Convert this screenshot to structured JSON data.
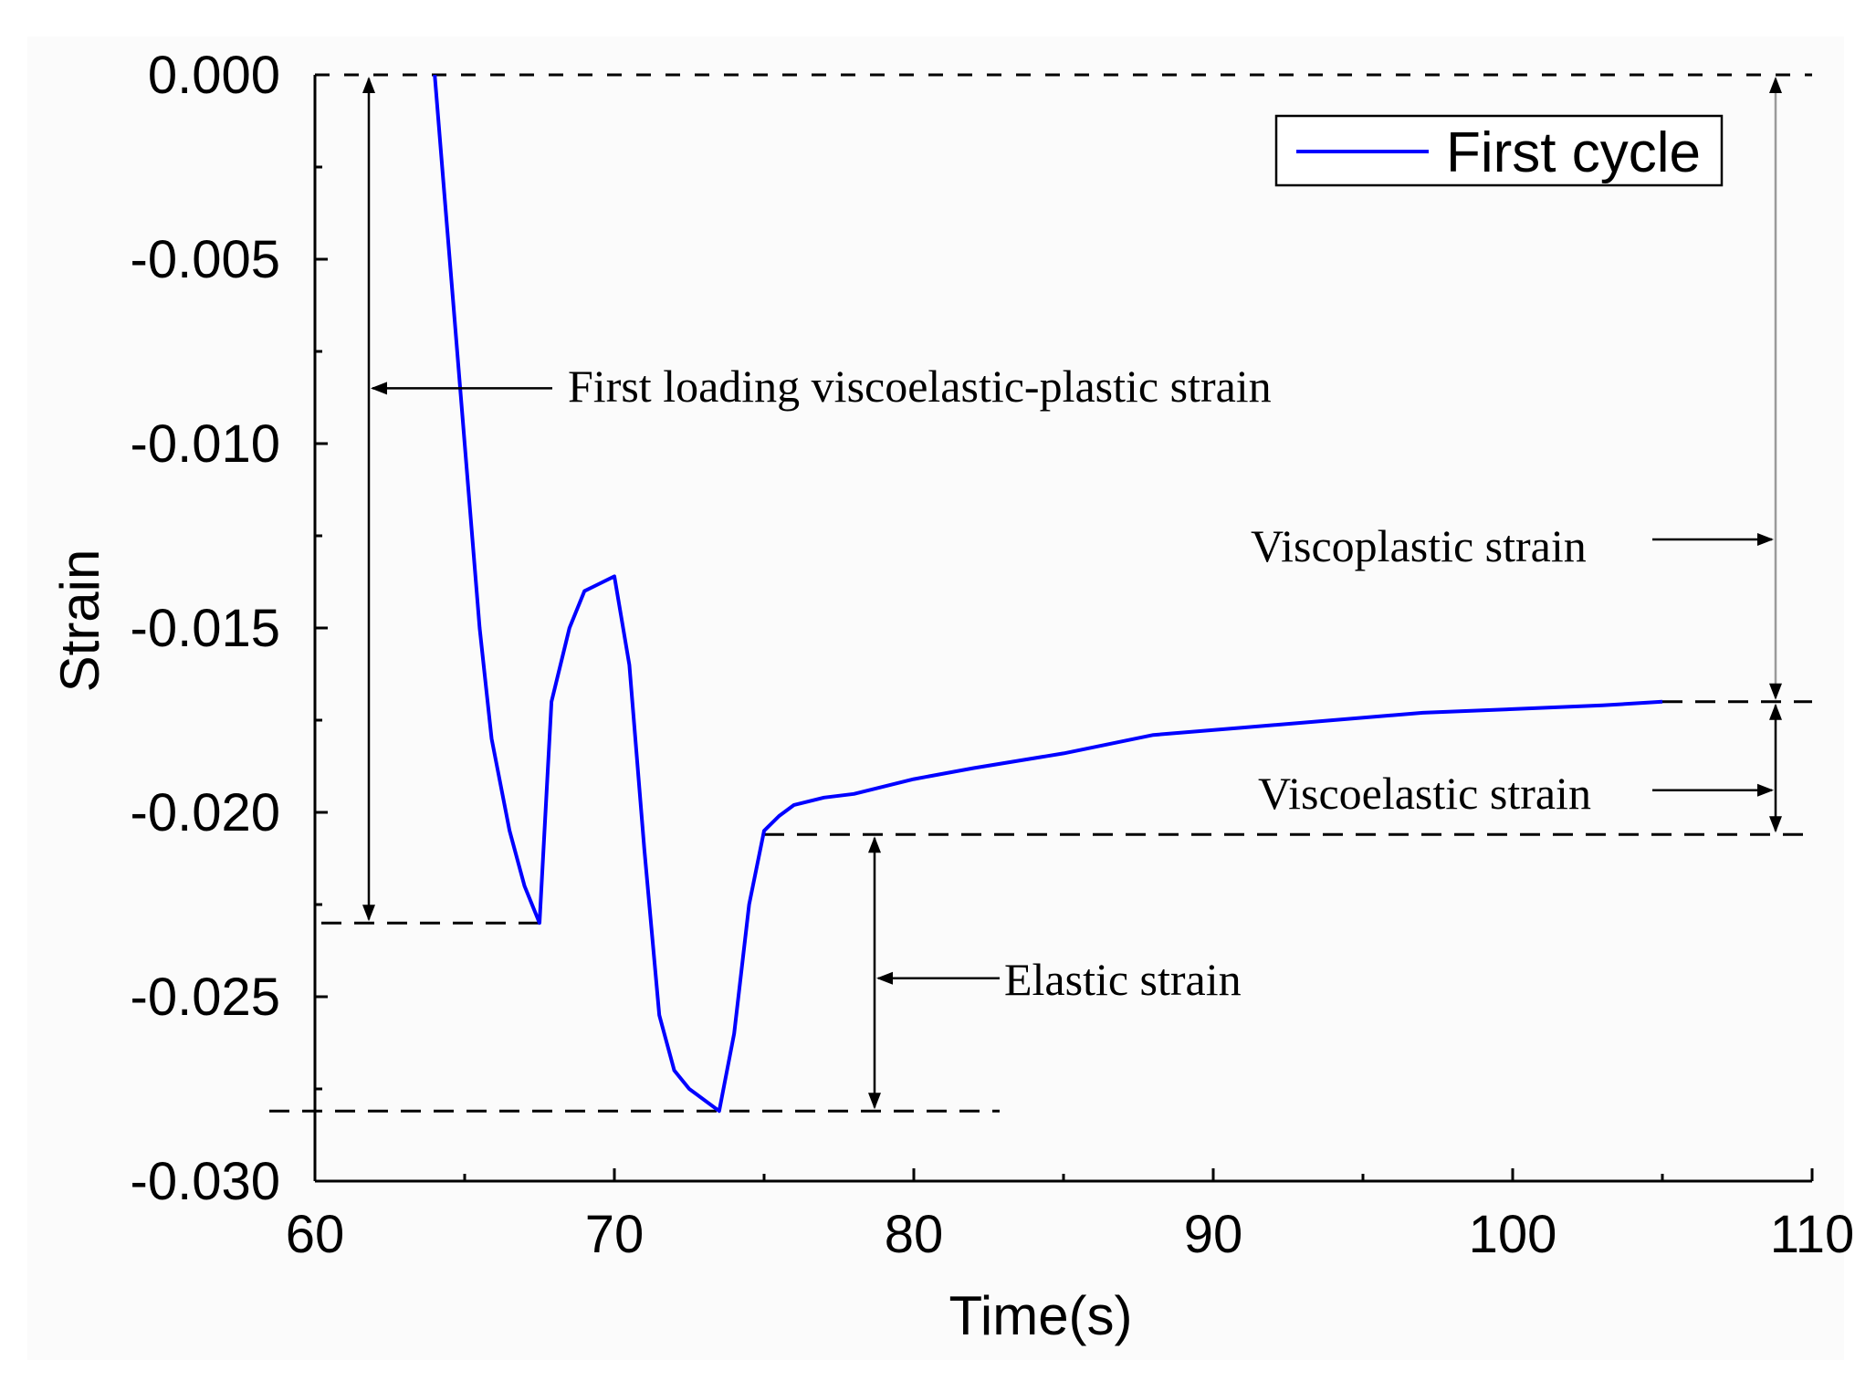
{
  "chart_data": {
    "type": "line",
    "xlabel": "Time(s)",
    "ylabel": "Strain",
    "xlim": [
      60,
      110
    ],
    "ylim": [
      -0.03,
      0.0
    ],
    "x_ticks": [
      "60",
      "70",
      "80",
      "90",
      "100",
      "110"
    ],
    "x_tick_values": [
      60,
      70,
      80,
      90,
      100,
      110
    ],
    "y_ticks": [
      "0.000",
      "-0.005",
      "-0.010",
      "-0.015",
      "-0.020",
      "-0.025",
      "-0.030"
    ],
    "y_tick_values": [
      0.0,
      -0.005,
      -0.01,
      -0.015,
      -0.02,
      -0.025,
      -0.03
    ],
    "legend": {
      "position": "top-right",
      "entries": [
        "First cycle"
      ]
    },
    "series": [
      {
        "name": "First cycle",
        "color": "#0000ff",
        "x": [
          64.0,
          64.3,
          64.6,
          65.0,
          65.5,
          65.9,
          66.5,
          67.0,
          67.5,
          67.9,
          68.5,
          69.0,
          69.5,
          70.0,
          70.5,
          71.0,
          71.5,
          72.0,
          72.5,
          73.0,
          73.5,
          74.0,
          74.5,
          75.0,
          75.5,
          76.0,
          77.0,
          78.0,
          80.0,
          82.0,
          85.0,
          88.0,
          91.0,
          94.0,
          97.0,
          100.0,
          103.0,
          105.0
        ],
        "y": [
          0.0,
          -0.003,
          -0.006,
          -0.01,
          -0.015,
          -0.018,
          -0.0205,
          -0.022,
          -0.023,
          -0.017,
          -0.015,
          -0.014,
          -0.0138,
          -0.0136,
          -0.016,
          -0.021,
          -0.0255,
          -0.027,
          -0.0275,
          -0.0278,
          -0.0281,
          -0.026,
          -0.0225,
          -0.0205,
          -0.0201,
          -0.0198,
          -0.0196,
          -0.0195,
          -0.0191,
          -0.0188,
          -0.0184,
          -0.0179,
          -0.0177,
          -0.0175,
          -0.0173,
          -0.0172,
          -0.0171,
          -0.017
        ]
      }
    ],
    "reference_levels": {
      "zero": 0.0,
      "first_loading_peak": -0.023,
      "minimum": -0.0281,
      "unloaded": -0.0206,
      "final": -0.017
    },
    "annotations": {
      "first_loading": "First loading viscoelastic-plastic strain",
      "viscoplastic": "Viscoplastic strain",
      "viscoelastic": "Viscoelastic strain",
      "elastic": "Elastic strain"
    }
  }
}
